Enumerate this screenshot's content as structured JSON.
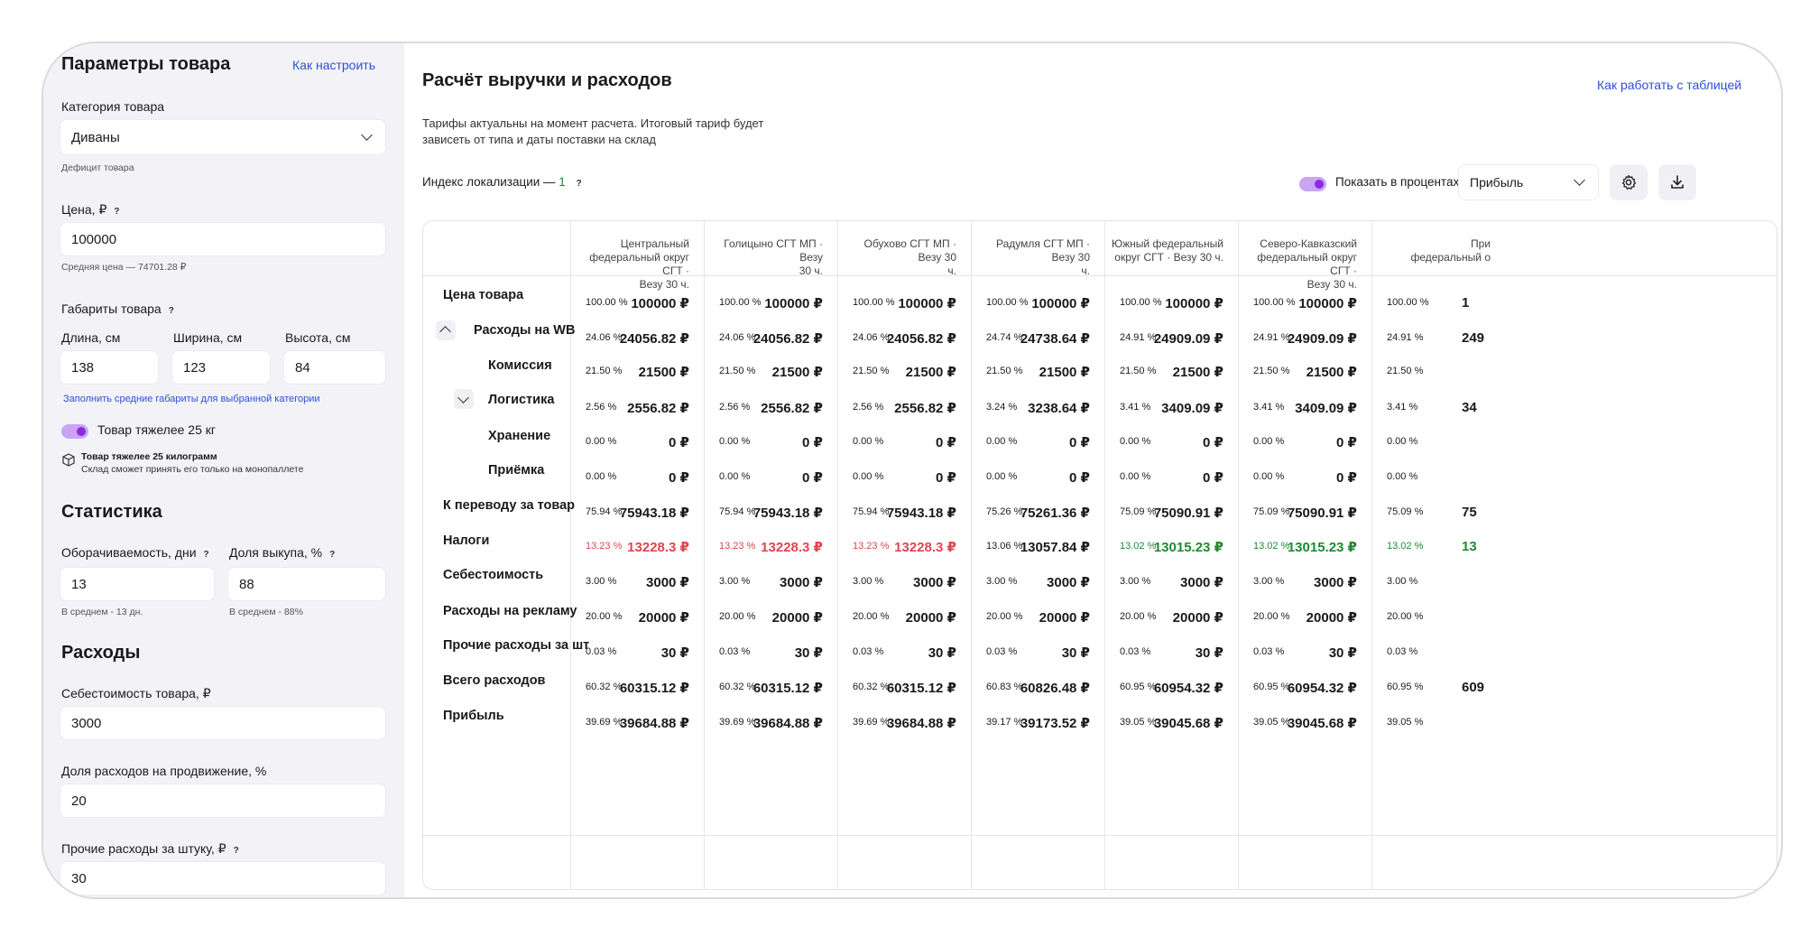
{
  "left": {
    "title": "Параметры товара",
    "howto_link": "Как настроить",
    "category": {
      "label": "Категория товара",
      "value": "Диваны",
      "hint": "Дефицит товара"
    },
    "price": {
      "label": "Цена, ₽",
      "value": "100000",
      "hint": "Средняя цена — 74701.28 ₽"
    },
    "dims": {
      "label": "Габариты товара",
      "length": {
        "label": "Длина, см",
        "value": "138"
      },
      "width": {
        "label": "Ширина, см",
        "value": "123"
      },
      "height": {
        "label": "Высота, см",
        "value": "84"
      },
      "fill_link": "Заполнить средние габариты для выбранной категории"
    },
    "heavy": {
      "label": "Товар тяжелее 25 кг",
      "note_title": "Товар тяжелее 25 килограмм",
      "note_text": "Склад сможет принять его только на монопаллете"
    },
    "stats": {
      "title": "Статистика",
      "turnover": {
        "label": "Оборачиваемость, дни",
        "value": "13",
        "hint": "В среднем - 13 дн."
      },
      "buyout": {
        "label": "Доля выкупа, %",
        "value": "88",
        "hint": "В среднем - 88%"
      }
    },
    "expenses": {
      "title": "Расходы",
      "cost": {
        "label": "Себестоимость товара, ₽",
        "value": "3000"
      },
      "promo": {
        "label": "Доля расходов на продвижение, %",
        "value": "20"
      },
      "other": {
        "label": "Прочие расходы за штуку, ₽",
        "value": "30"
      }
    },
    "q_mark": "?"
  },
  "right": {
    "title": "Расчёт выручки и расходов",
    "table_link": "Как работать с таблицей",
    "note": "Тарифы актуальны на момент расчета. Итоговый тариф будет зависеть от типа и даты поставки на склад",
    "note_line1": "Тарифы актуальны на момент расчета. Итоговый тариф будет",
    "note_line2": "зависеть от типа и даты поставки на склад",
    "loc_label": "Индекс локализации —",
    "loc_value": "1",
    "percent_toggle": "Показать в процентах",
    "metric_select": "Прибыль",
    "help": "?"
  },
  "columns": [
    {
      "h1": "Центральный",
      "h2": "федеральный округ СГТ ·",
      "h3": "Везу 30 ч."
    },
    {
      "h1": "Голицыно СГТ МП · Везу",
      "h2": "30 ч.",
      "h3": ""
    },
    {
      "h1": "Обухово СГТ МП · Везу 30",
      "h2": "ч.",
      "h3": ""
    },
    {
      "h1": "Радумля СГТ МП · Везу 30",
      "h2": "ч.",
      "h3": ""
    },
    {
      "h1": "Южный федеральный",
      "h2": "округ СГТ · Везу 30 ч.",
      "h3": ""
    },
    {
      "h1": "Северо-Кавказский",
      "h2": "федеральный округ СГТ ·",
      "h3": "Везу 30 ч."
    },
    {
      "h1": "При",
      "h2": "федеральный о",
      "h3": ""
    }
  ],
  "rows": [
    {
      "label": "Цена товара",
      "cells": [
        [
          "100.00 %",
          "100000 ₽"
        ],
        [
          "100.00 %",
          "100000 ₽"
        ],
        [
          "100.00 %",
          "100000 ₽"
        ],
        [
          "100.00 %",
          "100000 ₽"
        ],
        [
          "100.00 %",
          "100000 ₽"
        ],
        [
          "100.00 %",
          "100000 ₽"
        ],
        [
          "100.00 %",
          "1"
        ]
      ]
    },
    {
      "label": "Расходы на WB",
      "cells": [
        [
          "24.06 %",
          "24056.82 ₽"
        ],
        [
          "24.06 %",
          "24056.82 ₽"
        ],
        [
          "24.06 %",
          "24056.82 ₽"
        ],
        [
          "24.74 %",
          "24738.64 ₽"
        ],
        [
          "24.91 %",
          "24909.09 ₽"
        ],
        [
          "24.91 %",
          "24909.09 ₽"
        ],
        [
          "24.91 %",
          "249"
        ]
      ]
    },
    {
      "label": "Комиссия",
      "cells": [
        [
          "21.50 %",
          "21500 ₽"
        ],
        [
          "21.50 %",
          "21500 ₽"
        ],
        [
          "21.50 %",
          "21500 ₽"
        ],
        [
          "21.50 %",
          "21500 ₽"
        ],
        [
          "21.50 %",
          "21500 ₽"
        ],
        [
          "21.50 %",
          "21500 ₽"
        ],
        [
          "21.50 %",
          ""
        ]
      ]
    },
    {
      "label": "Логистика",
      "cells": [
        [
          "2.56 %",
          "2556.82 ₽"
        ],
        [
          "2.56 %",
          "2556.82 ₽"
        ],
        [
          "2.56 %",
          "2556.82 ₽"
        ],
        [
          "3.24 %",
          "3238.64 ₽"
        ],
        [
          "3.41 %",
          "3409.09 ₽"
        ],
        [
          "3.41 %",
          "3409.09 ₽"
        ],
        [
          "3.41 %",
          "34"
        ]
      ]
    },
    {
      "label": "Хранение",
      "cells": [
        [
          "0.00 %",
          "0 ₽"
        ],
        [
          "0.00 %",
          "0 ₽"
        ],
        [
          "0.00 %",
          "0 ₽"
        ],
        [
          "0.00 %",
          "0 ₽"
        ],
        [
          "0.00 %",
          "0 ₽"
        ],
        [
          "0.00 %",
          "0 ₽"
        ],
        [
          "0.00 %",
          ""
        ]
      ]
    },
    {
      "label": "Приёмка",
      "cells": [
        [
          "0.00 %",
          "0 ₽"
        ],
        [
          "0.00 %",
          "0 ₽"
        ],
        [
          "0.00 %",
          "0 ₽"
        ],
        [
          "0.00 %",
          "0 ₽"
        ],
        [
          "0.00 %",
          "0 ₽"
        ],
        [
          "0.00 %",
          "0 ₽"
        ],
        [
          "0.00 %",
          ""
        ]
      ]
    },
    {
      "label": "К переводу за товар",
      "cells": [
        [
          "75.94 %",
          "75943.18 ₽"
        ],
        [
          "75.94 %",
          "75943.18 ₽"
        ],
        [
          "75.94 %",
          "75943.18 ₽"
        ],
        [
          "75.26 %",
          "75261.36 ₽"
        ],
        [
          "75.09 %",
          "75090.91 ₽"
        ],
        [
          "75.09 %",
          "75090.91 ₽"
        ],
        [
          "75.09 %",
          "75"
        ]
      ]
    },
    {
      "label": "Налоги",
      "cells": [
        [
          "13.23 %",
          "13228.3 ₽"
        ],
        [
          "13.23 %",
          "13228.3 ₽"
        ],
        [
          "13.23 %",
          "13228.3 ₽"
        ],
        [
          "13.06 %",
          "13057.84 ₽"
        ],
        [
          "13.02 %",
          "13015.23 ₽"
        ],
        [
          "13.02 %",
          "13015.23 ₽"
        ],
        [
          "13.02 %",
          "13"
        ]
      ]
    },
    {
      "label": "Себестоимость",
      "cells": [
        [
          "3.00 %",
          "3000 ₽"
        ],
        [
          "3.00 %",
          "3000 ₽"
        ],
        [
          "3.00 %",
          "3000 ₽"
        ],
        [
          "3.00 %",
          "3000 ₽"
        ],
        [
          "3.00 %",
          "3000 ₽"
        ],
        [
          "3.00 %",
          "3000 ₽"
        ],
        [
          "3.00 %",
          ""
        ]
      ]
    },
    {
      "label": "Расходы на рекламу",
      "cells": [
        [
          "20.00 %",
          "20000 ₽"
        ],
        [
          "20.00 %",
          "20000 ₽"
        ],
        [
          "20.00 %",
          "20000 ₽"
        ],
        [
          "20.00 %",
          "20000 ₽"
        ],
        [
          "20.00 %",
          "20000 ₽"
        ],
        [
          "20.00 %",
          "20000 ₽"
        ],
        [
          "20.00 %",
          ""
        ]
      ]
    },
    {
      "label": "Прочие расходы за шт",
      "cells": [
        [
          "0.03 %",
          "30 ₽"
        ],
        [
          "0.03 %",
          "30 ₽"
        ],
        [
          "0.03 %",
          "30 ₽"
        ],
        [
          "0.03 %",
          "30 ₽"
        ],
        [
          "0.03 %",
          "30 ₽"
        ],
        [
          "0.03 %",
          "30 ₽"
        ],
        [
          "0.03 %",
          ""
        ]
      ]
    },
    {
      "label": "Всего расходов",
      "cells": [
        [
          "60.32 %",
          "60315.12 ₽"
        ],
        [
          "60.32 %",
          "60315.12 ₽"
        ],
        [
          "60.32 %",
          "60315.12 ₽"
        ],
        [
          "60.83 %",
          "60826.48 ₽"
        ],
        [
          "60.95 %",
          "60954.32 ₽"
        ],
        [
          "60.95 %",
          "60954.32 ₽"
        ],
        [
          "60.95 %",
          "609"
        ]
      ]
    },
    {
      "label": "Прибыль",
      "cells": [
        [
          "39.69 %",
          "39684.88 ₽"
        ],
        [
          "39.69 %",
          "39684.88 ₽"
        ],
        [
          "39.69 %",
          "39684.88 ₽"
        ],
        [
          "39.17 %",
          "39173.52 ₽"
        ],
        [
          "39.05 %",
          "39045.68 ₽"
        ],
        [
          "39.05 %",
          "39045.68 ₽"
        ],
        [
          "39.05 %",
          ""
        ]
      ]
    }
  ],
  "colors": {
    "accent": "#8a2be2",
    "link": "#2e4fd6",
    "negative": "#e0454f",
    "positive": "#1e8a2e"
  },
  "icons": {
    "settings": "gear-icon",
    "download": "download-icon",
    "box": "box-icon"
  }
}
